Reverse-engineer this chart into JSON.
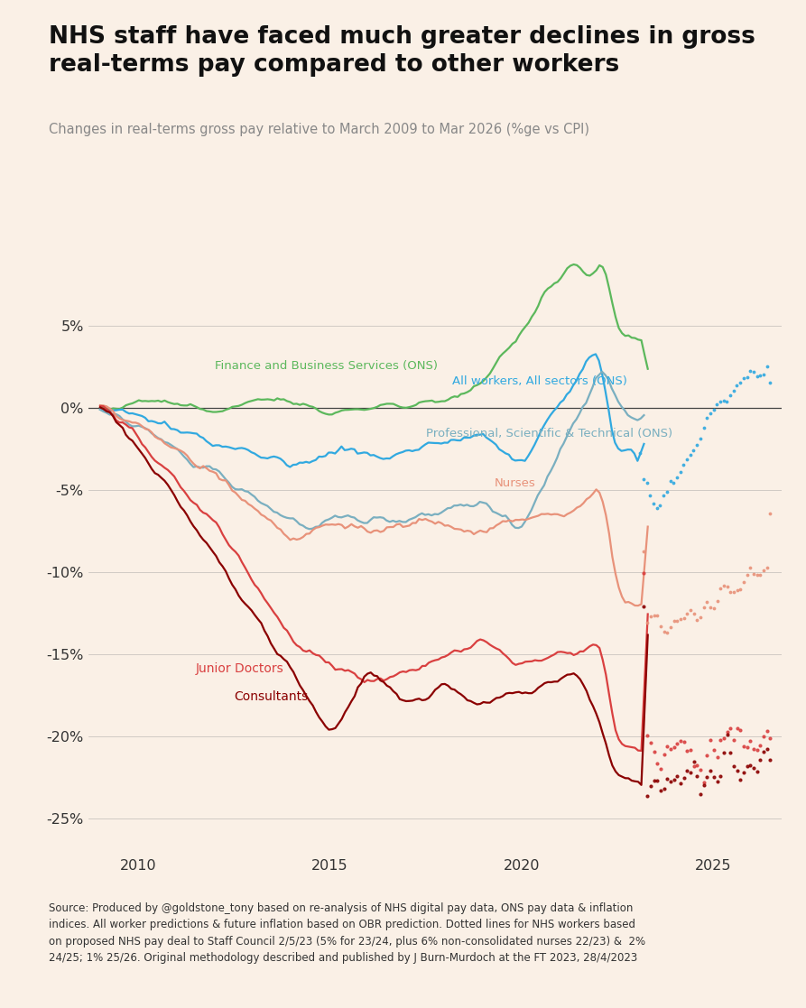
{
  "title": "NHS staff have faced much greater declines in gross\nreal-terms pay compared to other workers",
  "subtitle": "Changes in real-terms gross pay relative to March 2009 to Mar 2026 (%ge vs CPI)",
  "source_text": "Source: Produced by @goldstone_tony based on re-analysis of NHS digital pay data, ONS pay data & inflation\nindices. All worker predictions & future inflation based on OBR prediction. Dotted lines for NHS workers based\non proposed NHS pay deal to Staff Council 2/5/23 (5% for 23/24, plus 6% non-consolidated nurses 22/23) &  2%\n24/25; 1% 25/26. Original methodology described and published by J Burn-Murdoch at the FT 2023, 28/4/2023",
  "background_color": "#FAF0E6",
  "colors": {
    "finance": "#5cb85c",
    "all_workers": "#31a9e0",
    "prof_sci_tech": "#7aafc0",
    "nurses": "#e8927a",
    "junior_doctors": "#d94040",
    "consultants": "#8b0000"
  },
  "labels": {
    "finance": "Finance and Business Services (ONS)",
    "all_workers": "All workers, All sectors (ONS)",
    "prof_sci_tech": "Professional, Scientific & Technical (ONS)",
    "nurses": "Nurses",
    "junior_doctors": "Junior Doctors",
    "consultants": "Consultants"
  },
  "ylim": [
    -0.27,
    0.095
  ],
  "yticks": [
    -0.25,
    -0.2,
    -0.15,
    -0.1,
    -0.05,
    0.0,
    0.05
  ],
  "yticklabels": [
    "-25%",
    "-20%",
    "-15%",
    "-10%",
    "-5%",
    "0%",
    "5%"
  ],
  "xlim_start": 2008.7,
  "xlim_end": 2026.8
}
